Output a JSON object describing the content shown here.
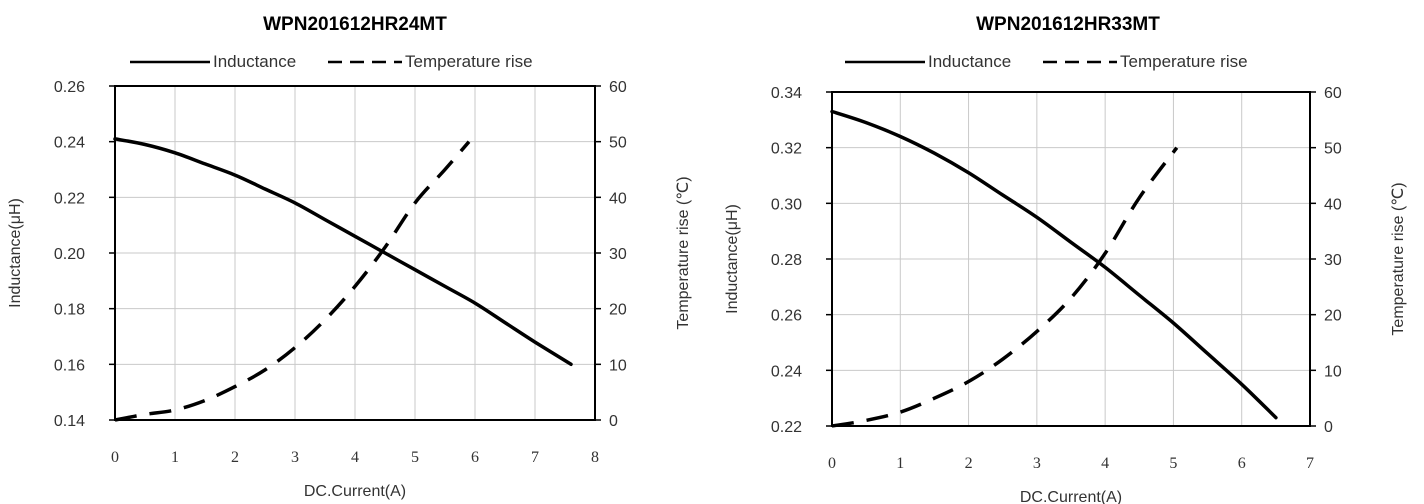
{
  "chart_data": [
    {
      "type": "line",
      "title": "WPN201612HR24MT",
      "xlabel": "DC.Current(A)",
      "ylabel": "Inductance(μH)",
      "y2label": "Temperature rise (℃)",
      "xlim": [
        0,
        8
      ],
      "xticks": [
        0,
        1,
        2,
        3,
        4,
        5,
        6,
        7,
        8
      ],
      "ylim": [
        0.14,
        0.26
      ],
      "yticks": [
        "0.14",
        "0.16",
        "0.18",
        "0.20",
        "0.22",
        "0.24",
        "0.26"
      ],
      "y2lim": [
        0,
        60
      ],
      "y2ticks": [
        0,
        10,
        20,
        30,
        40,
        50,
        60
      ],
      "grid": true,
      "legend_position": "top",
      "series": [
        {
          "name": "Inductance",
          "axis": "left",
          "style": "solid",
          "x": [
            0,
            0.5,
            1,
            1.5,
            2,
            2.5,
            3,
            3.5,
            4,
            4.5,
            5,
            5.5,
            6,
            6.5,
            7,
            7.6
          ],
          "values": [
            0.241,
            0.239,
            0.236,
            0.232,
            0.228,
            0.223,
            0.218,
            0.212,
            0.206,
            0.2,
            0.194,
            0.188,
            0.182,
            0.175,
            0.168,
            0.16
          ]
        },
        {
          "name": "Temperature rise",
          "axis": "right",
          "style": "dashed",
          "x": [
            0,
            0.5,
            1,
            1.5,
            2,
            2.5,
            3,
            3.5,
            4,
            4.5,
            5,
            5.5,
            5.9
          ],
          "values": [
            0,
            1,
            1.8,
            3.5,
            6,
            9,
            13,
            18,
            24,
            31,
            39,
            45,
            50
          ]
        }
      ]
    },
    {
      "type": "line",
      "title": "WPN201612HR33MT",
      "xlabel": "DC.Current(A)",
      "ylabel": "Inductance(μH)",
      "y2label": "Temperature rise (℃)",
      "xlim": [
        0,
        7
      ],
      "xticks": [
        0,
        1,
        2,
        3,
        4,
        5,
        6,
        7
      ],
      "ylim": [
        0.22,
        0.34
      ],
      "yticks": [
        "0.22",
        "0.24",
        "0.26",
        "0.28",
        "0.30",
        "0.32",
        "0.34"
      ],
      "y2lim": [
        0,
        60
      ],
      "y2ticks": [
        0,
        10,
        20,
        30,
        40,
        50,
        60
      ],
      "grid": true,
      "legend_position": "top",
      "series": [
        {
          "name": "Inductance",
          "axis": "left",
          "style": "solid",
          "x": [
            0,
            0.5,
            1,
            1.5,
            2,
            2.5,
            3,
            3.5,
            4,
            4.5,
            5,
            5.5,
            6,
            6.5
          ],
          "values": [
            0.333,
            0.329,
            0.324,
            0.318,
            0.311,
            0.303,
            0.295,
            0.286,
            0.277,
            0.267,
            0.257,
            0.246,
            0.235,
            0.223
          ]
        },
        {
          "name": "Temperature rise",
          "axis": "right",
          "style": "dashed",
          "x": [
            0,
            0.5,
            1,
            1.5,
            2,
            2.5,
            3,
            3.5,
            4,
            4.5,
            5.05
          ],
          "values": [
            0,
            1,
            2.5,
            5,
            8,
            12,
            17,
            23,
            31,
            41,
            50
          ]
        }
      ]
    }
  ]
}
